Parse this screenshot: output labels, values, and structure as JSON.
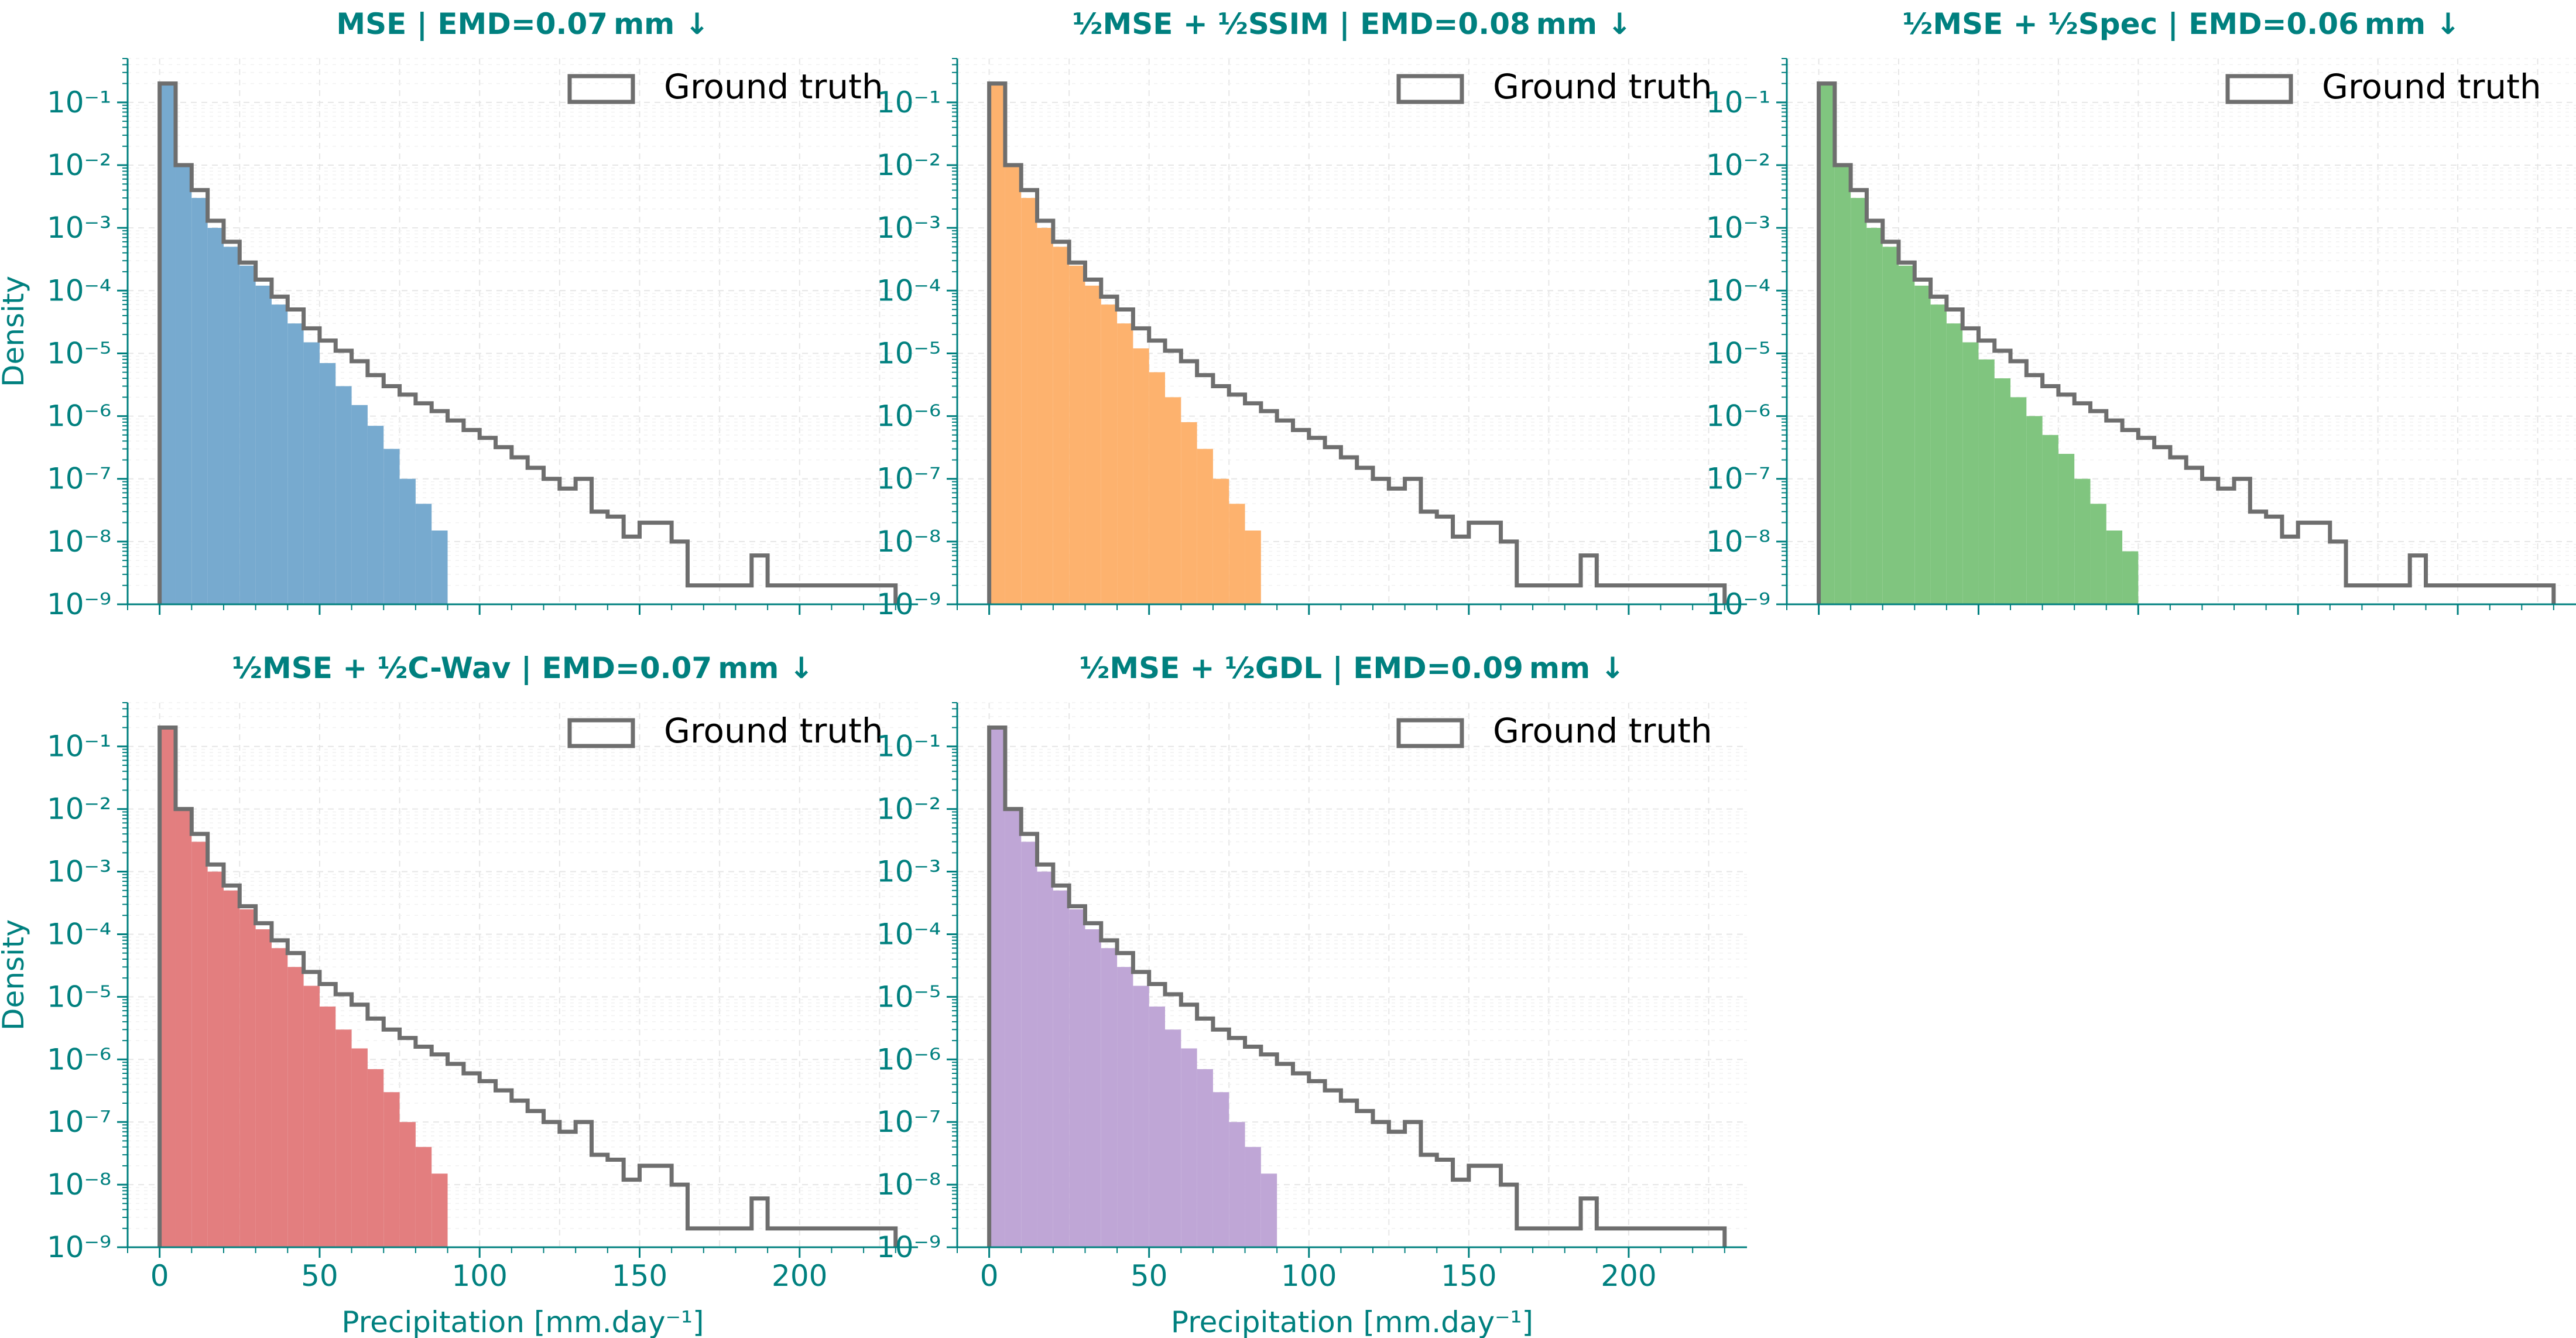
{
  "colors": {
    "axis": "#00807f",
    "ground_truth": "#6e6e6e",
    "grid": "#e6e6e6"
  },
  "chart_data": [
    {
      "type": "histogram",
      "title_main": "MSE",
      "title_emd": "EMD=0.07 mm ↓",
      "ylabel": "Density",
      "xlabel": "",
      "xlim": [
        -10,
        237
      ],
      "ylim": [
        1e-09,
        0.5
      ],
      "yscale": "log",
      "show_xticklabels": false,
      "grid": true,
      "legend": {
        "label": "Ground truth",
        "position": "top-right"
      },
      "bin_width": 5,
      "series": [
        {
          "name": "MSE",
          "color": "#77aacf",
          "style": "filled",
          "values": [
            0.2,
            0.01,
            0.003,
            0.001,
            0.0005,
            0.00025,
            0.00012,
            6e-05,
            3e-05,
            1.5e-05,
            7e-06,
            3e-06,
            1.5e-06,
            7e-07,
            3e-07,
            1e-07,
            4e-08,
            1.5e-08
          ]
        },
        {
          "name": "Ground truth",
          "color": "#6e6e6e",
          "style": "step",
          "values": [
            0.2,
            0.01,
            0.004,
            0.0013,
            0.0006,
            0.00028,
            0.00015,
            8e-05,
            5e-05,
            2.5e-05,
            1.6e-05,
            1.1e-05,
            7.5e-06,
            4.5e-06,
            3e-06,
            2.2e-06,
            1.6e-06,
            1.2e-06,
            8.5e-07,
            6e-07,
            4.5e-07,
            3.2e-07,
            2.2e-07,
            1.5e-07,
            1e-07,
            7e-08,
            1e-07,
            3e-08,
            2.5e-08,
            1.2e-08,
            2e-08,
            2e-08,
            1e-08,
            2e-09,
            2e-09,
            2e-09,
            2e-09,
            6e-09,
            2e-09,
            2e-09,
            2e-09,
            2e-09,
            2e-09,
            2e-09,
            2e-09,
            2e-09
          ]
        }
      ]
    },
    {
      "type": "histogram",
      "title_main": "½MSE + ½SSIM",
      "title_emd": "EMD=0.08 mm ↓",
      "ylabel": "",
      "xlabel": "",
      "xlim": [
        -10,
        237
      ],
      "ylim": [
        1e-09,
        0.5
      ],
      "yscale": "log",
      "show_xticklabels": false,
      "grid": true,
      "legend": {
        "label": "Ground truth",
        "position": "top-right"
      },
      "bin_width": 5,
      "series": [
        {
          "name": "½MSE + ½SSIM",
          "color": "#fdb26e",
          "style": "filled",
          "values": [
            0.2,
            0.01,
            0.003,
            0.001,
            0.0005,
            0.00025,
            0.00012,
            6e-05,
            3e-05,
            1.2e-05,
            5e-06,
            2e-06,
            8e-07,
            3e-07,
            1e-07,
            4e-08,
            1.5e-08
          ]
        },
        {
          "name": "Ground truth",
          "color": "#6e6e6e",
          "style": "step",
          "values": [
            0.2,
            0.01,
            0.004,
            0.0013,
            0.0006,
            0.00028,
            0.00015,
            8e-05,
            5e-05,
            2.5e-05,
            1.6e-05,
            1.1e-05,
            7.5e-06,
            4.5e-06,
            3e-06,
            2.2e-06,
            1.6e-06,
            1.2e-06,
            8.5e-07,
            6e-07,
            4.5e-07,
            3.2e-07,
            2.2e-07,
            1.5e-07,
            1e-07,
            7e-08,
            1e-07,
            3e-08,
            2.5e-08,
            1.2e-08,
            2e-08,
            2e-08,
            1e-08,
            2e-09,
            2e-09,
            2e-09,
            2e-09,
            6e-09,
            2e-09,
            2e-09,
            2e-09,
            2e-09,
            2e-09,
            2e-09,
            2e-09,
            2e-09
          ]
        }
      ]
    },
    {
      "type": "histogram",
      "title_main": "½MSE + ½Spec",
      "title_emd": "EMD=0.06 mm ↓",
      "ylabel": "",
      "xlabel": "",
      "xlim": [
        -10,
        237
      ],
      "ylim": [
        1e-09,
        0.5
      ],
      "yscale": "log",
      "show_xticklabels": false,
      "grid": true,
      "legend": {
        "label": "Ground truth",
        "position": "top-right"
      },
      "bin_width": 5,
      "series": [
        {
          "name": "½MSE + ½Spec",
          "color": "#80c57f",
          "style": "filled",
          "values": [
            0.2,
            0.01,
            0.003,
            0.001,
            0.0005,
            0.00025,
            0.00012,
            6e-05,
            3e-05,
            1.5e-05,
            8e-06,
            4e-06,
            2e-06,
            1e-06,
            5e-07,
            2.5e-07,
            1e-07,
            4e-08,
            1.5e-08,
            7e-09
          ]
        },
        {
          "name": "Ground truth",
          "color": "#6e6e6e",
          "style": "step",
          "values": [
            0.2,
            0.01,
            0.004,
            0.0013,
            0.0006,
            0.00028,
            0.00015,
            8e-05,
            5e-05,
            2.5e-05,
            1.6e-05,
            1.1e-05,
            7.5e-06,
            4.5e-06,
            3e-06,
            2.2e-06,
            1.6e-06,
            1.2e-06,
            8.5e-07,
            6e-07,
            4.5e-07,
            3.2e-07,
            2.2e-07,
            1.5e-07,
            1e-07,
            7e-08,
            1e-07,
            3e-08,
            2.5e-08,
            1.2e-08,
            2e-08,
            2e-08,
            1e-08,
            2e-09,
            2e-09,
            2e-09,
            2e-09,
            6e-09,
            2e-09,
            2e-09,
            2e-09,
            2e-09,
            2e-09,
            2e-09,
            2e-09,
            2e-09
          ]
        }
      ]
    },
    {
      "type": "histogram",
      "title_main": "½MSE + ½C-Wav",
      "title_emd": "EMD=0.07 mm ↓",
      "ylabel": "Density",
      "xlabel": "Precipitation [mm.day⁻¹]",
      "xlim": [
        -10,
        237
      ],
      "ylim": [
        1e-09,
        0.5
      ],
      "yscale": "log",
      "show_xticklabels": true,
      "grid": true,
      "legend": {
        "label": "Ground truth",
        "position": "top-right"
      },
      "bin_width": 5,
      "series": [
        {
          "name": "½MSE + ½C-Wav",
          "color": "#e37e7f",
          "style": "filled",
          "values": [
            0.2,
            0.01,
            0.003,
            0.001,
            0.0005,
            0.00025,
            0.00012,
            6e-05,
            3e-05,
            1.5e-05,
            7e-06,
            3e-06,
            1.5e-06,
            7e-07,
            3e-07,
            1e-07,
            4e-08,
            1.5e-08
          ]
        },
        {
          "name": "Ground truth",
          "color": "#6e6e6e",
          "style": "step",
          "values": [
            0.2,
            0.01,
            0.004,
            0.0013,
            0.0006,
            0.00028,
            0.00015,
            8e-05,
            5e-05,
            2.5e-05,
            1.6e-05,
            1.1e-05,
            7.5e-06,
            4.5e-06,
            3e-06,
            2.2e-06,
            1.6e-06,
            1.2e-06,
            8.5e-07,
            6e-07,
            4.5e-07,
            3.2e-07,
            2.2e-07,
            1.5e-07,
            1e-07,
            7e-08,
            1e-07,
            3e-08,
            2.5e-08,
            1.2e-08,
            2e-08,
            2e-08,
            1e-08,
            2e-09,
            2e-09,
            2e-09,
            2e-09,
            6e-09,
            2e-09,
            2e-09,
            2e-09,
            2e-09,
            2e-09,
            2e-09,
            2e-09,
            2e-09
          ]
        }
      ]
    },
    {
      "type": "histogram",
      "title_main": "½MSE + ½GDL",
      "title_emd": "EMD=0.09 mm ↓",
      "ylabel": "",
      "xlabel": "Precipitation [mm.day⁻¹]",
      "xlim": [
        -10,
        237
      ],
      "ylim": [
        1e-09,
        0.5
      ],
      "yscale": "log",
      "show_xticklabels": true,
      "grid": true,
      "legend": {
        "label": "Ground truth",
        "position": "top-right"
      },
      "bin_width": 5,
      "series": [
        {
          "name": "½MSE + ½GDL",
          "color": "#bfa6d6",
          "style": "filled",
          "values": [
            0.2,
            0.01,
            0.003,
            0.001,
            0.0005,
            0.00025,
            0.00012,
            6e-05,
            3e-05,
            1.5e-05,
            7e-06,
            3e-06,
            1.5e-06,
            7e-07,
            3e-07,
            1e-07,
            4e-08,
            1.5e-08
          ]
        },
        {
          "name": "Ground truth",
          "color": "#6e6e6e",
          "style": "step",
          "values": [
            0.2,
            0.01,
            0.004,
            0.0013,
            0.0006,
            0.00028,
            0.00015,
            8e-05,
            5e-05,
            2.5e-05,
            1.6e-05,
            1.1e-05,
            7.5e-06,
            4.5e-06,
            3e-06,
            2.2e-06,
            1.6e-06,
            1.2e-06,
            8.5e-07,
            6e-07,
            4.5e-07,
            3.2e-07,
            2.2e-07,
            1.5e-07,
            1e-07,
            7e-08,
            1e-07,
            3e-08,
            2.5e-08,
            1.2e-08,
            2e-08,
            2e-08,
            1e-08,
            2e-09,
            2e-09,
            2e-09,
            2e-09,
            6e-09,
            2e-09,
            2e-09,
            2e-09,
            2e-09,
            2e-09,
            2e-09,
            2e-09,
            2e-09
          ]
        }
      ]
    }
  ],
  "axes": {
    "x_ticks": [
      "0",
      "50",
      "100",
      "150",
      "200"
    ],
    "y_ticks": [
      "10⁻¹",
      "10⁻²",
      "10⁻³",
      "10⁻⁴",
      "10⁻⁵",
      "10⁻⁶",
      "10⁻⁷",
      "10⁻⁸",
      "10⁻⁹"
    ]
  }
}
